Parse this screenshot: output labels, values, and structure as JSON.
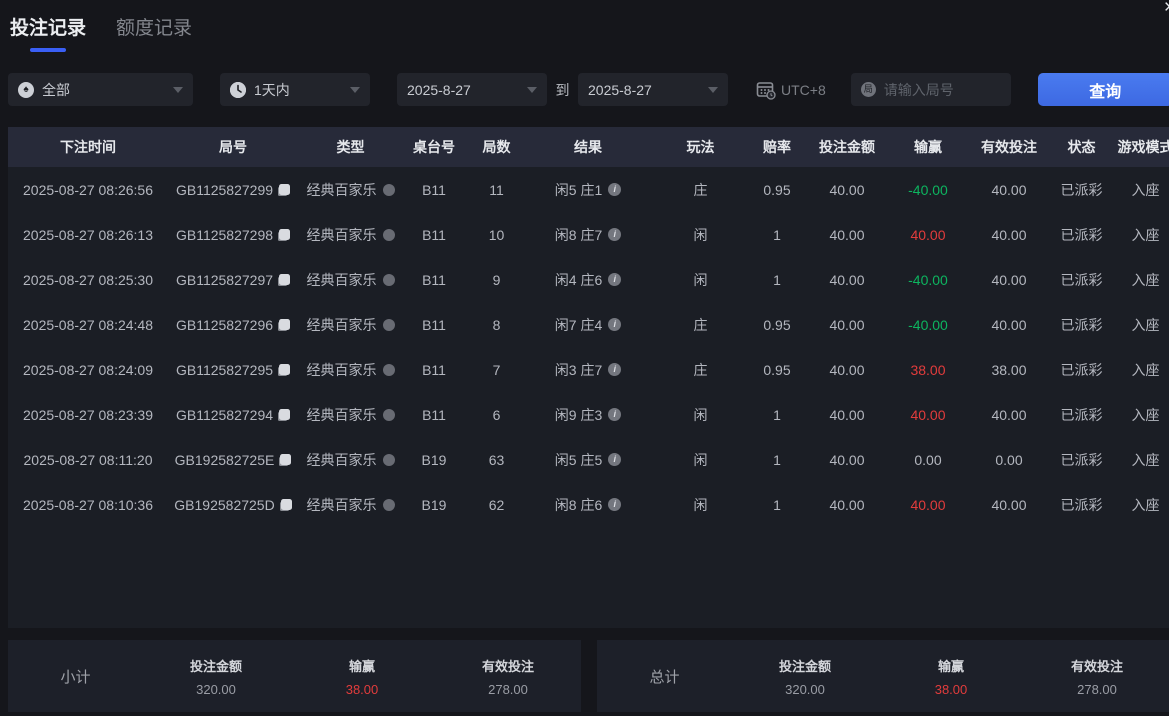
{
  "window": {
    "close_glyph": "×"
  },
  "tabs": [
    {
      "label": "投注记录",
      "active": true
    },
    {
      "label": "额度记录",
      "active": false
    }
  ],
  "filters": {
    "game_type": {
      "value": "全部",
      "icon": "spade-icon",
      "spade_glyph": "♠"
    },
    "time_range": {
      "value": "1天内",
      "icon": "clock-icon"
    },
    "date_from": "2025-8-27",
    "to_label": "到",
    "date_to": "2025-8-27",
    "timezone": "UTC+8",
    "round_input": {
      "value": "",
      "placeholder": "请输入局号",
      "icon_glyph": "局"
    },
    "search_button": "查询"
  },
  "table": {
    "headers": [
      "下注时间",
      "局号",
      "类型",
      "桌台号",
      "局数",
      "结果",
      "玩法",
      "赔率",
      "投注金额",
      "输赢",
      "有效投注",
      "状态",
      "游戏模式"
    ],
    "rows": [
      {
        "time": "2025-08-27 08:26:56",
        "round_id": "GB1125827299",
        "type": "经典百家乐",
        "table_no": "B11",
        "round_no": "11",
        "result": "闲5 庄1",
        "play": "庄",
        "odds": "0.95",
        "bet": "40.00",
        "win_loss": "-40.00",
        "win_loss_color": "green",
        "valid_bet": "40.00",
        "status": "已派彩",
        "mode": "入座"
      },
      {
        "time": "2025-08-27 08:26:13",
        "round_id": "GB1125827298",
        "type": "经典百家乐",
        "table_no": "B11",
        "round_no": "10",
        "result": "闲8 庄7",
        "play": "闲",
        "odds": "1",
        "bet": "40.00",
        "win_loss": "40.00",
        "win_loss_color": "red",
        "valid_bet": "40.00",
        "status": "已派彩",
        "mode": "入座"
      },
      {
        "time": "2025-08-27 08:25:30",
        "round_id": "GB1125827297",
        "type": "经典百家乐",
        "table_no": "B11",
        "round_no": "9",
        "result": "闲4 庄6",
        "play": "闲",
        "odds": "1",
        "bet": "40.00",
        "win_loss": "-40.00",
        "win_loss_color": "green",
        "valid_bet": "40.00",
        "status": "已派彩",
        "mode": "入座"
      },
      {
        "time": "2025-08-27 08:24:48",
        "round_id": "GB1125827296",
        "type": "经典百家乐",
        "table_no": "B11",
        "round_no": "8",
        "result": "闲7 庄4",
        "play": "庄",
        "odds": "0.95",
        "bet": "40.00",
        "win_loss": "-40.00",
        "win_loss_color": "green",
        "valid_bet": "40.00",
        "status": "已派彩",
        "mode": "入座"
      },
      {
        "time": "2025-08-27 08:24:09",
        "round_id": "GB1125827295",
        "type": "经典百家乐",
        "table_no": "B11",
        "round_no": "7",
        "result": "闲3 庄7",
        "play": "庄",
        "odds": "0.95",
        "bet": "40.00",
        "win_loss": "38.00",
        "win_loss_color": "red",
        "valid_bet": "38.00",
        "status": "已派彩",
        "mode": "入座"
      },
      {
        "time": "2025-08-27 08:23:39",
        "round_id": "GB1125827294",
        "type": "经典百家乐",
        "table_no": "B11",
        "round_no": "6",
        "result": "闲9 庄3",
        "play": "闲",
        "odds": "1",
        "bet": "40.00",
        "win_loss": "40.00",
        "win_loss_color": "red",
        "valid_bet": "40.00",
        "status": "已派彩",
        "mode": "入座"
      },
      {
        "time": "2025-08-27 08:11:20",
        "round_id": "GB192582725E",
        "type": "经典百家乐",
        "table_no": "B19",
        "round_no": "63",
        "result": "闲5 庄5",
        "play": "闲",
        "odds": "1",
        "bet": "40.00",
        "win_loss": "0.00",
        "win_loss_color": "neutral",
        "valid_bet": "0.00",
        "status": "已派彩",
        "mode": "入座"
      },
      {
        "time": "2025-08-27 08:10:36",
        "round_id": "GB192582725D",
        "type": "经典百家乐",
        "table_no": "B19",
        "round_no": "62",
        "result": "闲8 庄6",
        "play": "闲",
        "odds": "1",
        "bet": "40.00",
        "win_loss": "40.00",
        "win_loss_color": "red",
        "valid_bet": "40.00",
        "status": "已派彩",
        "mode": "入座"
      }
    ]
  },
  "summary": {
    "subtotal": {
      "label": "小计",
      "bet_label": "投注金额",
      "bet": "320.00",
      "win_label": "输赢",
      "win": "38.00",
      "valid_label": "有效投注",
      "valid": "278.00"
    },
    "total": {
      "label": "总计",
      "bet_label": "投注金额",
      "bet": "320.00",
      "win_label": "输赢",
      "win": "38.00",
      "valid_label": "有效投注",
      "valid": "278.00"
    }
  },
  "colors": {
    "accent": "#3a5ff5",
    "button": "#4273e8",
    "win_red": "#e23c3c",
    "loss_green": "#0db45f"
  }
}
